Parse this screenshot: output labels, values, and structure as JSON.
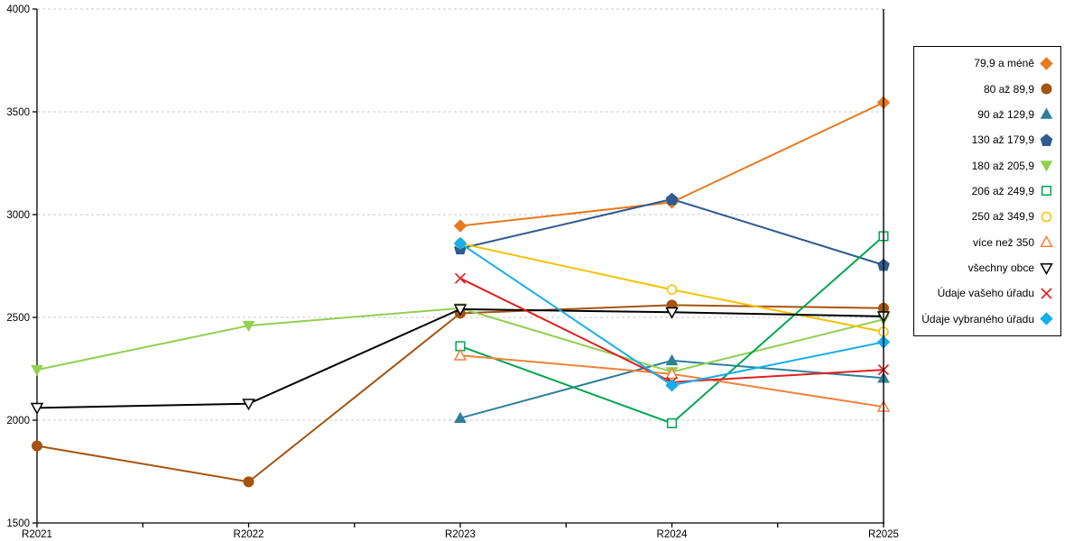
{
  "chart_data": {
    "type": "line",
    "title": "",
    "xlabel": "",
    "ylabel": "",
    "x_categories": [
      "R2021",
      "R2022",
      "R2023",
      "R2024",
      "R2025"
    ],
    "y_axis": {
      "min": 1500,
      "max": 4000,
      "tick_step": 500,
      "ticks": [
        1500,
        2000,
        2500,
        3000,
        3500,
        4000
      ]
    },
    "grid": "horizontal-dashed",
    "legend_position": "right-outside",
    "highlighted_category": "R2025",
    "series": [
      {
        "name": "79,9 a méně",
        "marker": "diamond",
        "filled": true,
        "color": "#E8791D",
        "values": [
          null,
          null,
          2945,
          3060,
          3545
        ]
      },
      {
        "name": "80 až 89,9",
        "marker": "circle",
        "filled": true,
        "color": "#A5540F",
        "values": [
          1875,
          1700,
          2520,
          2560,
          2545
        ]
      },
      {
        "name": "90 až 129,9",
        "marker": "triangle-up",
        "filled": true,
        "color": "#2E8099",
        "values": [
          null,
          null,
          2010,
          2290,
          2205
        ]
      },
      {
        "name": "130 až 179,9",
        "marker": "pentagon",
        "filled": true,
        "color": "#2F5B91",
        "values": [
          null,
          null,
          2835,
          3075,
          2755
        ]
      },
      {
        "name": "180 až 205,9",
        "marker": "triangle-down",
        "filled": true,
        "color": "#92D050",
        "values": [
          2245,
          2460,
          2545,
          2235,
          2490
        ]
      },
      {
        "name": "206 až 249,9",
        "marker": "square",
        "filled": false,
        "color": "#00A651",
        "values": [
          null,
          null,
          2360,
          1985,
          2895
        ]
      },
      {
        "name": "250 až 349,9",
        "marker": "circle",
        "filled": false,
        "color": "#F2C200",
        "values": [
          null,
          null,
          2860,
          2635,
          2430
        ]
      },
      {
        "name": "více než 350",
        "marker": "triangle-up",
        "filled": false,
        "color": "#F0813A",
        "values": [
          null,
          null,
          2315,
          2225,
          2065
        ]
      },
      {
        "name": "všechny obce",
        "marker": "triangle-down",
        "filled": false,
        "color": "#000000",
        "values": [
          2060,
          2080,
          2540,
          2525,
          2505
        ]
      },
      {
        "name": "Údaje vašeho úřadu",
        "marker": "x",
        "filled": false,
        "color": "#E02020",
        "values": [
          null,
          null,
          2690,
          2185,
          2245
        ]
      },
      {
        "name": "Údaje vybraného úřadu",
        "marker": "diamond",
        "filled": true,
        "color": "#16AEEC",
        "values": [
          null,
          null,
          2860,
          2170,
          2380
        ]
      }
    ]
  },
  "colors": {
    "gridline": "#C8C8C8",
    "axis": "#000000",
    "background": "#FFFFFF",
    "highlight_line": "#000000"
  }
}
